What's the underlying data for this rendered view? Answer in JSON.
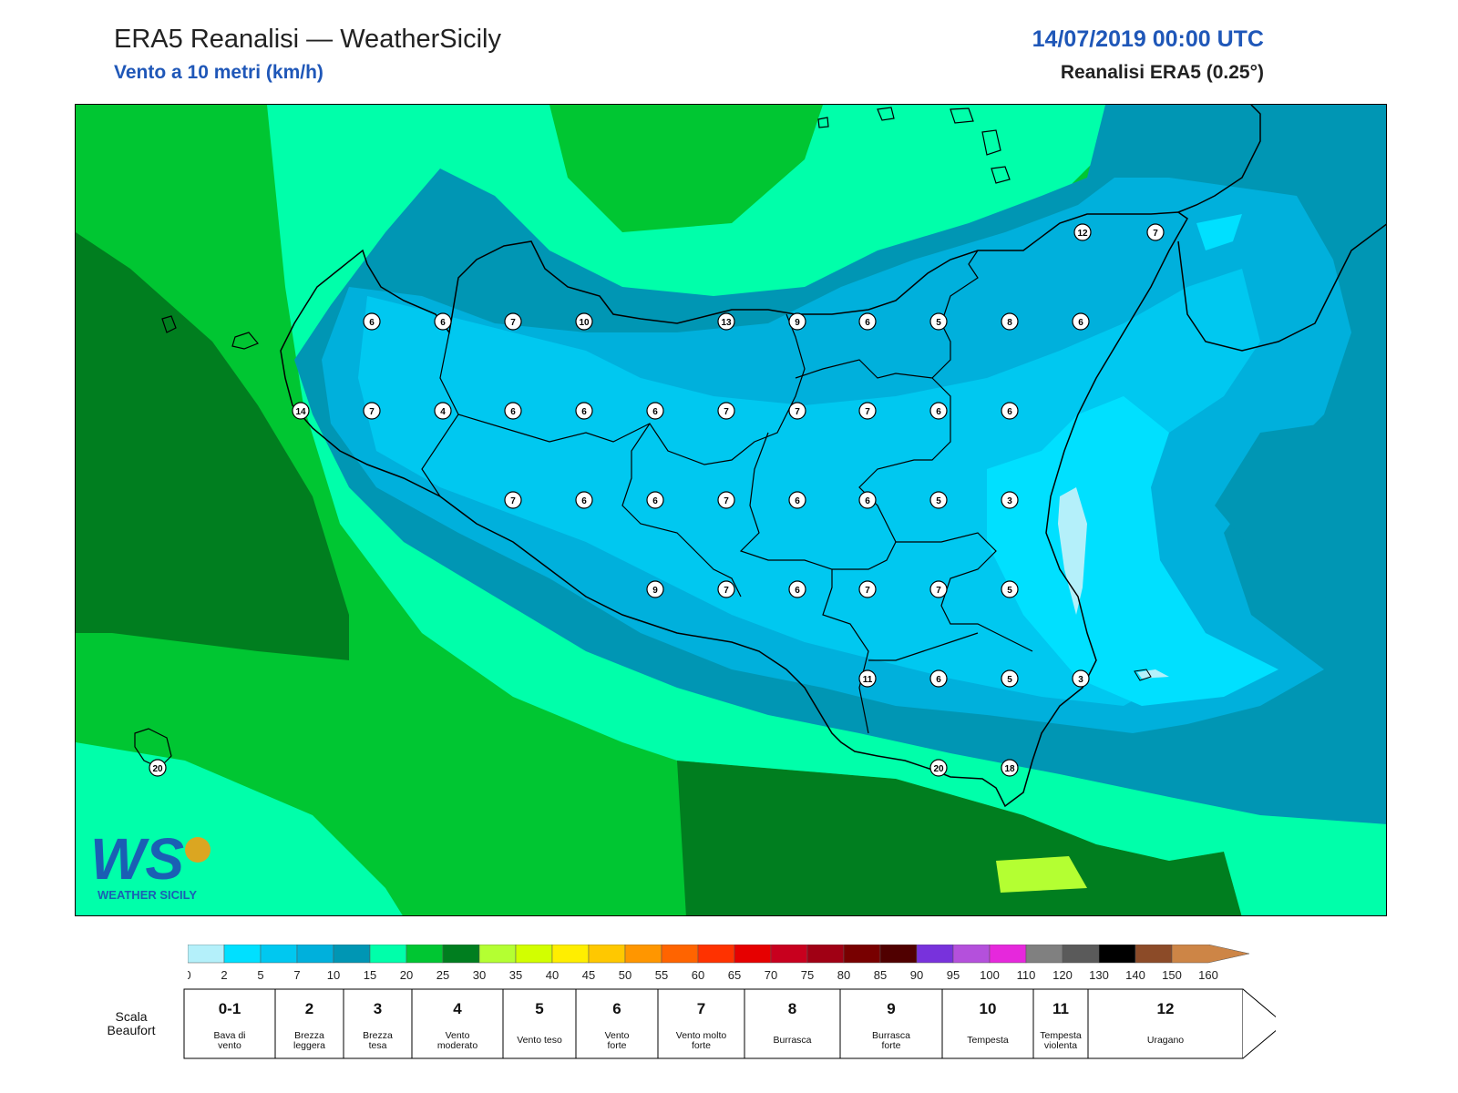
{
  "header": {
    "title": "ERA5 Reanalisi — WeatherSicily",
    "subtitle": "Vento a 10 metri (km/h)",
    "datetime": "14/07/2019 00:00 UTC",
    "source": "Reanalisi ERA5 (0.25°)"
  },
  "colors": {
    "sea_green_dark": "#007e1f",
    "sea_green": "#00c632",
    "sea_aqua": "#00ffaa",
    "blue_dark": "#0096b4",
    "blue_mid": "#00b0dc",
    "blue_light": "#00c8f0",
    "blue_lighter": "#00e0ff",
    "pale": "#b4f0fa"
  },
  "station_labels": [
    {
      "id": "s1",
      "value": "12"
    },
    {
      "id": "s2",
      "value": "7"
    },
    {
      "id": "s3",
      "value": "6"
    },
    {
      "id": "s4",
      "value": "6"
    },
    {
      "id": "s5",
      "value": "7"
    },
    {
      "id": "s6",
      "value": "10"
    },
    {
      "id": "s7",
      "value": "13"
    },
    {
      "id": "s8",
      "value": "9"
    },
    {
      "id": "s9",
      "value": "6"
    },
    {
      "id": "s10",
      "value": "5"
    },
    {
      "id": "s11",
      "value": "8"
    },
    {
      "id": "s12",
      "value": "6"
    },
    {
      "id": "s13",
      "value": "14"
    },
    {
      "id": "s14",
      "value": "7"
    },
    {
      "id": "s15",
      "value": "4"
    },
    {
      "id": "s16",
      "value": "6"
    },
    {
      "id": "s17",
      "value": "6"
    },
    {
      "id": "s18",
      "value": "6"
    },
    {
      "id": "s19",
      "value": "7"
    },
    {
      "id": "s20",
      "value": "7"
    },
    {
      "id": "s21",
      "value": "7"
    },
    {
      "id": "s22",
      "value": "6"
    },
    {
      "id": "s23",
      "value": "6"
    },
    {
      "id": "s24",
      "value": "7"
    },
    {
      "id": "s25",
      "value": "6"
    },
    {
      "id": "s26",
      "value": "6"
    },
    {
      "id": "s27",
      "value": "7"
    },
    {
      "id": "s28",
      "value": "6"
    },
    {
      "id": "s29",
      "value": "6"
    },
    {
      "id": "s30",
      "value": "5"
    },
    {
      "id": "s31",
      "value": "3"
    },
    {
      "id": "s32",
      "value": "9"
    },
    {
      "id": "s33",
      "value": "7"
    },
    {
      "id": "s34",
      "value": "6"
    },
    {
      "id": "s35",
      "value": "7"
    },
    {
      "id": "s36",
      "value": "7"
    },
    {
      "id": "s37",
      "value": "5"
    },
    {
      "id": "s38",
      "value": "11"
    },
    {
      "id": "s39",
      "value": "6"
    },
    {
      "id": "s40",
      "value": "5"
    },
    {
      "id": "s41",
      "value": "3"
    },
    {
      "id": "s42",
      "value": "20"
    },
    {
      "id": "s43",
      "value": "20"
    },
    {
      "id": "s44",
      "value": "18"
    }
  ],
  "colorbar": {
    "ticks": [
      "0",
      "2",
      "5",
      "7",
      "10",
      "15",
      "20",
      "25",
      "30",
      "35",
      "40",
      "45",
      "50",
      "55",
      "60",
      "65",
      "70",
      "75",
      "80",
      "85",
      "90",
      "95",
      "100",
      "110",
      "120",
      "130",
      "140",
      "150",
      "160"
    ],
    "colors": [
      "#b4f0fa",
      "#00e0ff",
      "#00c8f0",
      "#00b0dc",
      "#0096b4",
      "#00ffaa",
      "#00c632",
      "#007e1f",
      "#b4ff32",
      "#d2ff00",
      "#ffee00",
      "#ffc800",
      "#ff9600",
      "#ff6400",
      "#ff3200",
      "#e60000",
      "#c8001e",
      "#a00014",
      "#780000",
      "#500000",
      "#7832dc",
      "#b450dc",
      "#e628dc",
      "#808080",
      "#5a5a5a",
      "#000000",
      "#8c4b28",
      "#cd8546"
    ]
  },
  "beaufort": {
    "label": "Scala Beaufort",
    "label_line1": "Scala",
    "label_line2": "Beaufort",
    "levels": [
      {
        "num": "0-1",
        "desc1": "Bava di",
        "desc2": "vento"
      },
      {
        "num": "2",
        "desc1": "Brezza",
        "desc2": "leggera"
      },
      {
        "num": "3",
        "desc1": "Brezza",
        "desc2": "tesa"
      },
      {
        "num": "4",
        "desc1": "Vento",
        "desc2": "moderato"
      },
      {
        "num": "5",
        "desc1": "Vento teso",
        "desc2": ""
      },
      {
        "num": "6",
        "desc1": "Vento",
        "desc2": "forte"
      },
      {
        "num": "7",
        "desc1": "Vento molto",
        "desc2": "forte"
      },
      {
        "num": "8",
        "desc1": "Burrasca",
        "desc2": ""
      },
      {
        "num": "9",
        "desc1": "Burrasca",
        "desc2": "forte"
      },
      {
        "num": "10",
        "desc1": "Tempesta",
        "desc2": ""
      },
      {
        "num": "11",
        "desc1": "Tempesta",
        "desc2": "violenta"
      },
      {
        "num": "12",
        "desc1": "Uragano",
        "desc2": ""
      }
    ]
  },
  "logo": {
    "text": "WEATHER SICILY",
    "letters": "WS"
  }
}
